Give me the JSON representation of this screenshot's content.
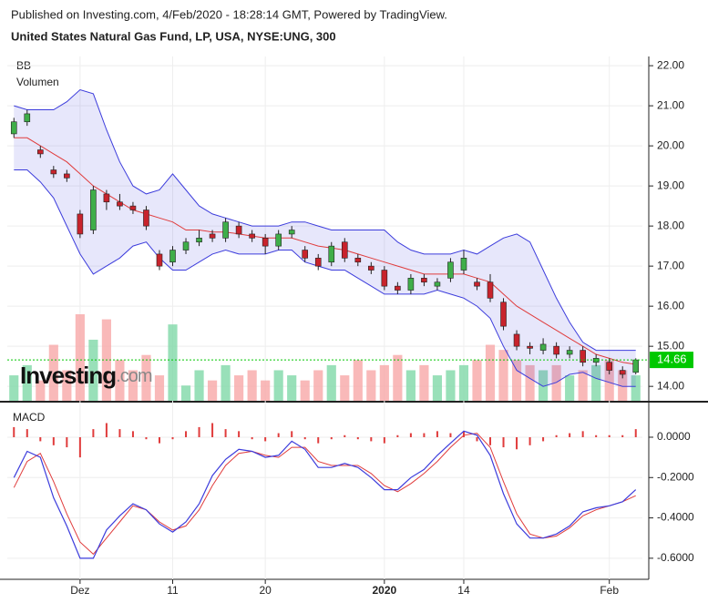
{
  "header": {
    "published": "Published on Investing.com, 4/Feb/2020 - 18:28:14 GMT, Powered by TradingView.",
    "symbol": "United States Natural Gas Fund, LP, USA, NYSE:UNG, 300"
  },
  "watermark": [
    "Investing",
    ".com"
  ],
  "chart_data": [
    {
      "type": "candlestick",
      "legend": [
        "BB",
        "Volumen"
      ],
      "categories": [
        null,
        null,
        null,
        null,
        null,
        "Dez",
        null,
        null,
        null,
        null,
        null,
        null,
        "11",
        null,
        null,
        null,
        null,
        null,
        null,
        "20",
        null,
        null,
        null,
        null,
        null,
        null,
        null,
        null,
        "2020",
        null,
        null,
        null,
        null,
        null,
        "14",
        null,
        null,
        null,
        null,
        null,
        null,
        null,
        null,
        null,
        null,
        "Feb",
        null,
        null
      ],
      "open": [
        20.3,
        20.6,
        19.9,
        19.4,
        19.3,
        18.3,
        17.9,
        18.8,
        18.6,
        18.5,
        18.4,
        17.3,
        17.1,
        17.4,
        17.6,
        17.8,
        17.7,
        18.0,
        17.8,
        17.7,
        17.5,
        17.8,
        17.4,
        17.2,
        17.1,
        17.6,
        17.2,
        17.0,
        16.9,
        16.5,
        16.4,
        16.7,
        16.5,
        16.7,
        16.9,
        16.6,
        16.6,
        16.1,
        15.3,
        15.0,
        14.9,
        15.0,
        14.8,
        14.9,
        14.6,
        14.6,
        14.4,
        14.35
      ],
      "high": [
        20.7,
        20.9,
        20.0,
        19.5,
        19.4,
        18.4,
        19.0,
        18.9,
        18.8,
        18.6,
        18.5,
        17.4,
        17.5,
        17.7,
        17.9,
        17.9,
        18.2,
        18.1,
        17.9,
        17.8,
        17.9,
        18.0,
        17.5,
        17.3,
        17.6,
        17.7,
        17.3,
        17.1,
        17.0,
        16.6,
        16.8,
        16.8,
        16.7,
        17.2,
        17.4,
        16.7,
        16.8,
        16.2,
        15.4,
        15.1,
        15.2,
        15.1,
        15.0,
        15.0,
        14.8,
        14.7,
        14.5,
        14.7
      ],
      "low": [
        20.2,
        20.5,
        19.7,
        19.2,
        19.1,
        17.7,
        17.8,
        18.4,
        18.4,
        18.3,
        17.9,
        16.9,
        17.0,
        17.3,
        17.5,
        17.6,
        17.6,
        17.7,
        17.6,
        17.3,
        17.4,
        17.7,
        17.1,
        16.9,
        17.0,
        17.1,
        17.0,
        16.8,
        16.4,
        16.3,
        16.3,
        16.5,
        16.4,
        16.6,
        16.8,
        16.4,
        16.1,
        15.4,
        14.9,
        14.8,
        14.8,
        14.7,
        14.7,
        14.5,
        14.5,
        14.3,
        14.2,
        14.3
      ],
      "close": [
        20.6,
        20.8,
        19.8,
        19.3,
        19.2,
        17.8,
        18.9,
        18.6,
        18.5,
        18.4,
        18.0,
        17.0,
        17.4,
        17.6,
        17.7,
        17.7,
        18.1,
        17.8,
        17.7,
        17.5,
        17.8,
        17.9,
        17.2,
        17.0,
        17.5,
        17.2,
        17.1,
        16.9,
        16.5,
        16.4,
        16.7,
        16.6,
        16.6,
        17.1,
        17.2,
        16.5,
        16.2,
        15.5,
        15.0,
        14.95,
        15.05,
        14.8,
        14.9,
        14.6,
        14.7,
        14.4,
        14.3,
        14.66
      ],
      "bollinger": {
        "upper": [
          21.0,
          20.9,
          20.9,
          20.9,
          21.1,
          21.4,
          21.3,
          20.4,
          19.6,
          19.0,
          18.8,
          18.9,
          19.3,
          18.9,
          18.5,
          18.3,
          18.2,
          18.1,
          18.0,
          18.0,
          18.0,
          18.1,
          18.1,
          18.0,
          17.9,
          17.9,
          17.9,
          17.9,
          17.9,
          17.6,
          17.4,
          17.3,
          17.3,
          17.3,
          17.4,
          17.3,
          17.5,
          17.7,
          17.8,
          17.6,
          16.9,
          16.2,
          15.6,
          15.1,
          14.9,
          14.9,
          14.9,
          14.9
        ],
        "middle": [
          20.2,
          20.2,
          20.0,
          19.8,
          19.6,
          19.3,
          19.0,
          18.8,
          18.6,
          18.4,
          18.3,
          18.2,
          18.1,
          17.9,
          17.9,
          17.85,
          17.85,
          17.8,
          17.75,
          17.7,
          17.7,
          17.7,
          17.6,
          17.5,
          17.45,
          17.4,
          17.3,
          17.2,
          17.1,
          17.0,
          16.9,
          16.8,
          16.8,
          16.8,
          16.8,
          16.7,
          16.6,
          16.3,
          16.0,
          15.8,
          15.6,
          15.4,
          15.2,
          15.0,
          14.8,
          14.7,
          14.6,
          14.55
        ],
        "lower": [
          19.4,
          19.4,
          19.1,
          18.7,
          18.0,
          17.3,
          16.8,
          17.0,
          17.2,
          17.5,
          17.6,
          17.2,
          16.9,
          16.9,
          17.1,
          17.3,
          17.4,
          17.3,
          17.3,
          17.3,
          17.4,
          17.4,
          17.1,
          17.0,
          16.9,
          16.9,
          16.7,
          16.5,
          16.3,
          16.3,
          16.3,
          16.3,
          16.4,
          16.3,
          16.2,
          16.0,
          15.7,
          15.0,
          14.4,
          14.2,
          14.0,
          14.1,
          14.3,
          14.35,
          14.2,
          14.1,
          14.0,
          14.0
        ]
      },
      "volume": [
        25,
        35,
        20,
        55,
        30,
        85,
        60,
        80,
        40,
        30,
        45,
        25,
        75,
        15,
        30,
        20,
        35,
        25,
        30,
        20,
        30,
        25,
        20,
        30,
        35,
        25,
        40,
        30,
        35,
        45,
        30,
        35,
        25,
        30,
        35,
        40,
        55,
        50,
        40,
        35,
        30,
        35,
        25,
        30,
        35,
        40,
        30,
        25
      ],
      "colors": {
        "up": "#3fae49",
        "down": "#c8232c",
        "band": "#3c3cdc",
        "basis": "#e03c3c",
        "vol_up": "#7fd8a8",
        "vol_down": "#f7a8a8",
        "last": "#00c800"
      },
      "ylim": [
        13.64,
        22.23
      ],
      "yticks": [
        {
          "value": 14,
          "label": "14.00"
        },
        {
          "value": 15,
          "label": "15.00"
        },
        {
          "value": 16,
          "label": "16.00"
        },
        {
          "value": 17,
          "label": "17.00"
        },
        {
          "value": 18,
          "label": "18.00"
        },
        {
          "value": 19,
          "label": "19.00"
        },
        {
          "value": 20,
          "label": "20.00"
        },
        {
          "value": 21,
          "label": "21.00"
        },
        {
          "value": 22,
          "label": "22.00"
        }
      ],
      "grid": true
    },
    {
      "type": "macd",
      "title": "MACD",
      "macd": [
        -0.2,
        -0.07,
        -0.1,
        -0.3,
        -0.44,
        -0.6,
        -0.6,
        -0.46,
        -0.39,
        -0.33,
        -0.36,
        -0.43,
        -0.47,
        -0.42,
        -0.33,
        -0.19,
        -0.11,
        -0.06,
        -0.07,
        -0.1,
        -0.09,
        -0.02,
        -0.06,
        -0.15,
        -0.15,
        -0.13,
        -0.15,
        -0.2,
        -0.26,
        -0.26,
        -0.2,
        -0.16,
        -0.09,
        -0.03,
        0.03,
        0.01,
        -0.09,
        -0.28,
        -0.43,
        -0.5,
        -0.5,
        -0.48,
        -0.44,
        -0.37,
        -0.35,
        -0.34,
        -0.32,
        -0.26
      ],
      "signal": [
        -0.25,
        -0.12,
        -0.08,
        -0.22,
        -0.38,
        -0.52,
        -0.58,
        -0.5,
        -0.42,
        -0.34,
        -0.36,
        -0.42,
        -0.46,
        -0.44,
        -0.36,
        -0.24,
        -0.14,
        -0.08,
        -0.07,
        -0.09,
        -0.1,
        -0.05,
        -0.05,
        -0.12,
        -0.14,
        -0.14,
        -0.14,
        -0.18,
        -0.24,
        -0.27,
        -0.23,
        -0.18,
        -0.12,
        -0.05,
        0.01,
        0.02,
        -0.05,
        -0.22,
        -0.38,
        -0.48,
        -0.5,
        -0.49,
        -0.45,
        -0.39,
        -0.36,
        -0.34,
        -0.32,
        -0.29
      ],
      "histogram": [
        0.05,
        0.04,
        -0.02,
        -0.04,
        -0.05,
        -0.1,
        0.04,
        0.07,
        0.04,
        0.03,
        -0.01,
        -0.03,
        -0.01,
        0.03,
        0.05,
        0.07,
        0.04,
        0.03,
        -0.01,
        -0.02,
        0.02,
        0.03,
        -0.01,
        -0.03,
        -0.01,
        0.01,
        -0.01,
        -0.02,
        -0.03,
        0.01,
        0.02,
        0.02,
        0.03,
        0.02,
        0.03,
        -0.02,
        -0.04,
        -0.05,
        -0.06,
        -0.04,
        -0.02,
        0.01,
        0.02,
        0.03,
        0.01,
        0.01,
        0.01,
        0.04
      ],
      "colors": {
        "macd": "#3c3cdc",
        "signal": "#e03c3c",
        "histogram": "#e03c3c"
      },
      "ylim": [
        -0.7,
        0.167
      ],
      "yticks": [
        {
          "value": 0,
          "label": "0.0000"
        },
        {
          "value": -0.2,
          "label": "-0.2000"
        },
        {
          "value": -0.4,
          "label": "-0.4000"
        },
        {
          "value": -0.6,
          "label": "-0.6000"
        }
      ]
    }
  ]
}
